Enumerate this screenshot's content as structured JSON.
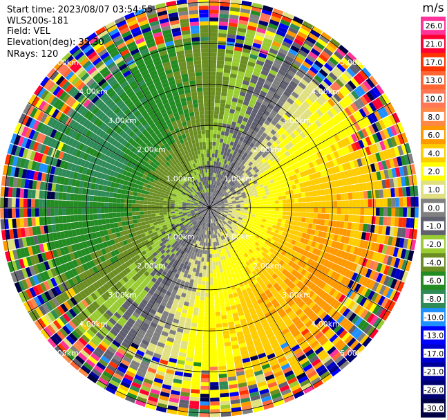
{
  "info": {
    "start_time": "Start time: 2023/08/07 03:54:55",
    "device": "WLS200s-181",
    "field": "Field: VEL",
    "elevation": "Elevation(deg): 35.30",
    "nrays": "NRays: 120"
  },
  "chart_data": {
    "type": "heatmap",
    "projection": "polar PPI scan",
    "field": "VEL",
    "n_rays": 120,
    "elevation_deg": 35.3,
    "range_rings_km": [
      1.0,
      2.0,
      3.0,
      4.0,
      5.0
    ],
    "range_ring_labels": [
      "1.00km",
      "2.00km",
      "3.00km",
      "4.00km",
      "5.00km"
    ],
    "max_range_km": 5.1,
    "colorbar": {
      "unit": "m/s",
      "ticks": [
        "26.0",
        "21.0",
        "17.0",
        "13.0",
        "10.0",
        "8.0",
        "6.0",
        "4.0",
        "2.0",
        "1.0",
        "0.0",
        "-1.0",
        "-2.0",
        "-4.0",
        "-6.0",
        "-8.0",
        "-10.0",
        "-13.0",
        "-17.0",
        "-21.0",
        "-26.0",
        "-30.0"
      ],
      "colors": [
        "#ff3399",
        "#ff0033",
        "#ff3300",
        "#ff6633",
        "#ff7755",
        "#ff8844",
        "#ff9900",
        "#ffcc00",
        "#ffff00",
        "#e0e080",
        "#808080",
        "#606070",
        "#99cc33",
        "#6b8e23",
        "#228b22",
        "#2e8b57",
        "#1e90ff",
        "#0000ff",
        "#0000cc",
        "#000099",
        "#000070",
        "#000044"
      ]
    }
  }
}
